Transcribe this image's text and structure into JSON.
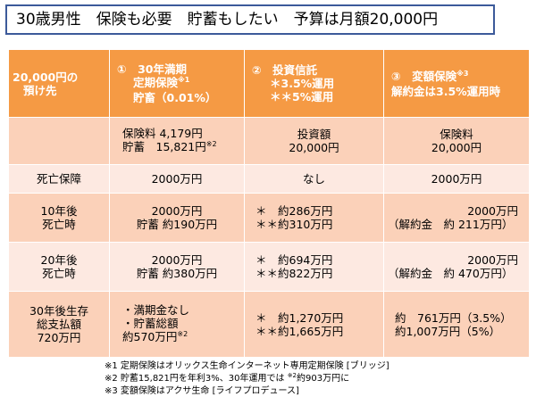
{
  "title": "30歳男性　保険も必要　貯蓄もしたい　予算は月額20,000円",
  "header": {
    "col0": [
      "20,000円の",
      "預け先"
    ],
    "col1": {
      "line1": "①　30年満期",
      "line2": "定期保険",
      "line2_sup": "※1",
      "line3": "貯畜（0.01%）"
    },
    "col2": {
      "line1": "②　投資信託",
      "line2": "＊3.5%運用",
      "line3": "＊＊5%運用"
    },
    "col3": {
      "line1": "③　変額保険",
      "line1_sup": "※3",
      "line2": "解約金は3.5%運用時"
    }
  },
  "rows": {
    "allocation": {
      "col1_line1": "保険料 4,179円",
      "col1_line2": "貯蓄　15,821円",
      "col1_line2_sup": "※2",
      "col2_line1": "投資額",
      "col2_line2": "20,000円",
      "col3_line1": "保険料",
      "col3_line2": "20,000円"
    },
    "death": {
      "label": "死亡保障",
      "col1": "2000万円",
      "col2": "なし",
      "col3": "2000万円"
    },
    "ten_years": {
      "label_line1": "10年後",
      "label_line2": "死亡時",
      "col1_line1": "2000万円",
      "col1_line2": "貯蓄 約190万円",
      "col2_line1": "＊　約286万円",
      "col2_line2": "＊＊約310万円",
      "col3_line1": "2000万円",
      "col3_line2": "（解約金　約 211万円）"
    },
    "twenty_years": {
      "label_line1": "20年後",
      "label_line2": "死亡時",
      "col1_line1": "2000万円",
      "col1_line2": "貯蓄 約380万円",
      "col2_line1": "＊　約694万円",
      "col2_line2": "＊＊約822万円",
      "col3_line1": "2000万円",
      "col3_line2": "（解約金　約 470万円）"
    },
    "thirty_years": {
      "label_line1": "30年後生存",
      "label_line2": "総支払額",
      "label_line3": "720万円",
      "col1_line1": "・満期金なし",
      "col1_line2": "・貯蓄総額",
      "col1_line3": "約570万円",
      "col1_line3_sup": "※2",
      "col2_line1": "＊　約1,270万円",
      "col2_line2": "＊＊約1,665万円",
      "col3_line1": "約　761万円（3.5%）",
      "col3_line2": "約1,007万円（5%）"
    }
  },
  "notes": {
    "note1": "※1 定期保険はオリックス生命インターネット専用定期保険 [ブリッジ]",
    "note2_pre": "※2 貯蓄15,821円を年利3%、30年運用では ",
    "note2_sup": "※2",
    "note2_post": "約903万円に",
    "note3": "※3 変額保険はアクサ生命 [ライフプロデュース]"
  },
  "colors": {
    "header_orange": "#f59a44",
    "row_dark": "#fbd1b9",
    "row_light": "#fde9e1",
    "title_border": "#3c5a9a"
  }
}
